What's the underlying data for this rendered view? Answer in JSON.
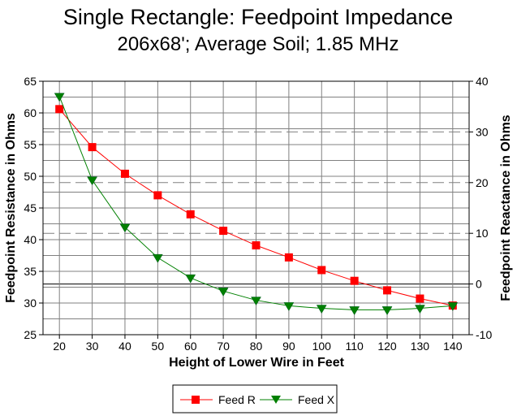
{
  "chart_data": {
    "type": "line",
    "title": "Single Rectangle:  Feedpoint Impedance",
    "subtitle": "206x68'; Average Soil; 1.85 MHz",
    "xlabel": "Height of Lower Wire in Feet",
    "ylabel": "Feedpoint Resistance in Ohms",
    "y2label": "Feedpoint Reactance in Ohms",
    "x": [
      20,
      30,
      40,
      50,
      60,
      70,
      80,
      90,
      100,
      110,
      120,
      130,
      140
    ],
    "xlim": [
      15,
      145
    ],
    "ylim": [
      25,
      65
    ],
    "y2lim": [
      -10,
      40
    ],
    "xticks": [
      "20",
      "30",
      "40",
      "50",
      "60",
      "70",
      "80",
      "90",
      "100",
      "110",
      "120",
      "130",
      "140"
    ],
    "yticks": [
      "25",
      "30",
      "35",
      "40",
      "45",
      "50",
      "55",
      "60",
      "65"
    ],
    "y2ticks": [
      "-10",
      "0",
      "10",
      "20",
      "30",
      "40"
    ],
    "grid": true,
    "legend_position": "bottom-center",
    "series": [
      {
        "name": "Feed R",
        "axis": "left",
        "color": "#ff0000",
        "marker": "square",
        "values": [
          60.6,
          54.6,
          50.4,
          47.0,
          44.0,
          41.4,
          39.1,
          37.2,
          35.2,
          33.5,
          32.0,
          30.7,
          29.6
        ]
      },
      {
        "name": "Feed X",
        "axis": "right",
        "color": "#008000",
        "marker": "triangle-down",
        "values": [
          37.0,
          20.5,
          11.2,
          5.2,
          1.2,
          -1.4,
          -3.2,
          -4.3,
          -4.8,
          -5.1,
          -5.1,
          -4.8,
          -4.3
        ]
      }
    ]
  }
}
